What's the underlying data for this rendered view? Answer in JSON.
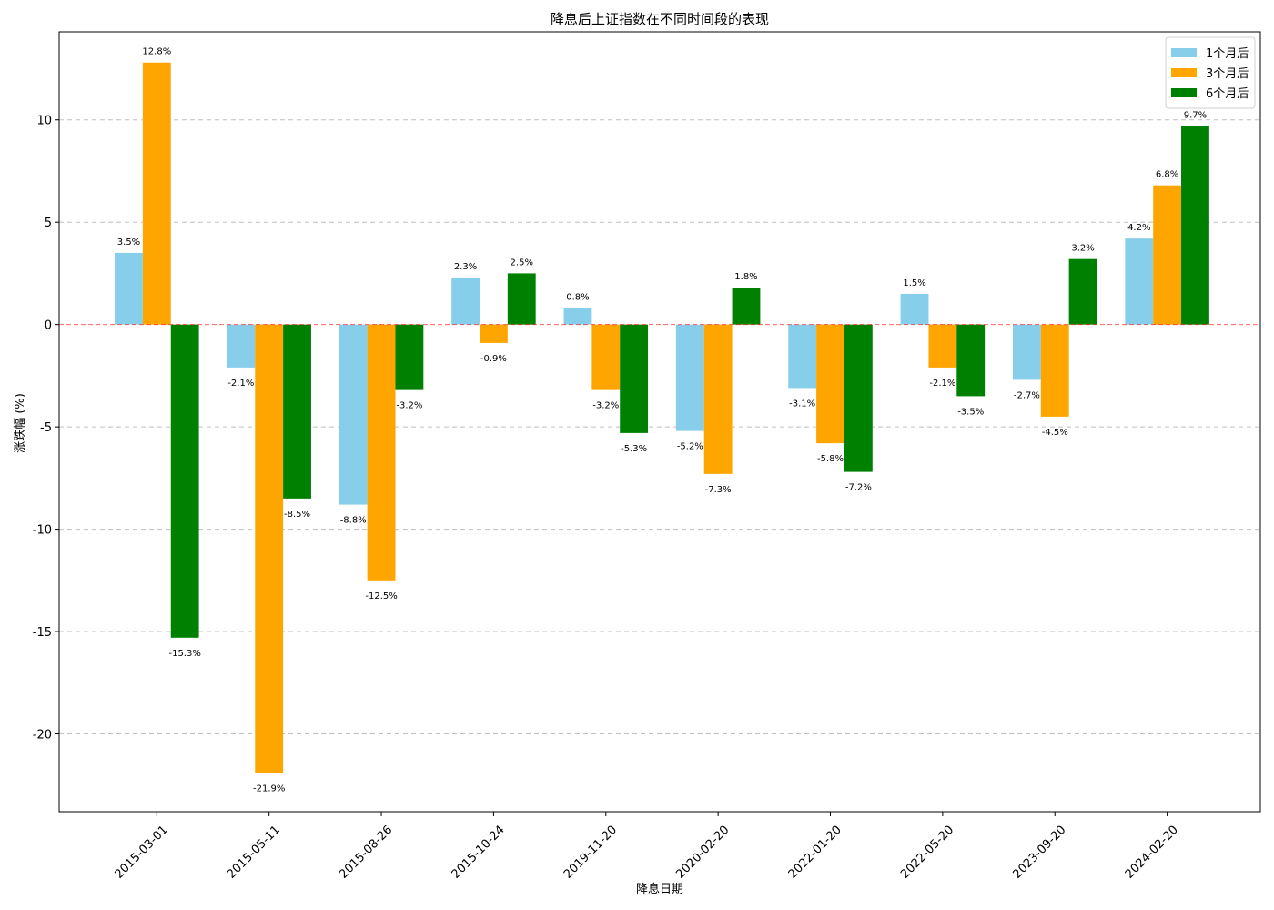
{
  "chart_data": {
    "type": "bar",
    "title": "降息后上证指数在不同时间段的表现",
    "xlabel": "降息日期",
    "ylabel": "涨跌幅 (%)",
    "categories": [
      "2015-03-01",
      "2015-05-11",
      "2015-08-26",
      "2015-10-24",
      "2019-11-20",
      "2020-02-20",
      "2022-01-20",
      "2022-05-20",
      "2023-09-20",
      "2024-02-20"
    ],
    "series": [
      {
        "name": "1个月后",
        "color": "#87CEEB",
        "values": [
          3.5,
          -2.1,
          -8.8,
          2.3,
          0.8,
          -5.2,
          -3.1,
          1.5,
          -2.7,
          4.2
        ]
      },
      {
        "name": "3个月后",
        "color": "#FFA500",
        "values": [
          12.8,
          -21.9,
          -12.5,
          -0.9,
          -3.2,
          -7.3,
          -5.8,
          -2.1,
          -4.5,
          6.8
        ]
      },
      {
        "name": "6个月后",
        "color": "#008000",
        "values": [
          -15.3,
          -8.5,
          -3.2,
          2.5,
          -5.3,
          1.8,
          -7.2,
          -3.5,
          3.2,
          9.7
        ]
      }
    ],
    "label_suffix": "%",
    "ylim": [
      -23.8,
      14.3
    ],
    "yticks": [
      -20,
      -15,
      -10,
      -5,
      0,
      5,
      10
    ],
    "zero_line_color": "#FF0000",
    "grid": true,
    "legend_position": "top-right"
  }
}
